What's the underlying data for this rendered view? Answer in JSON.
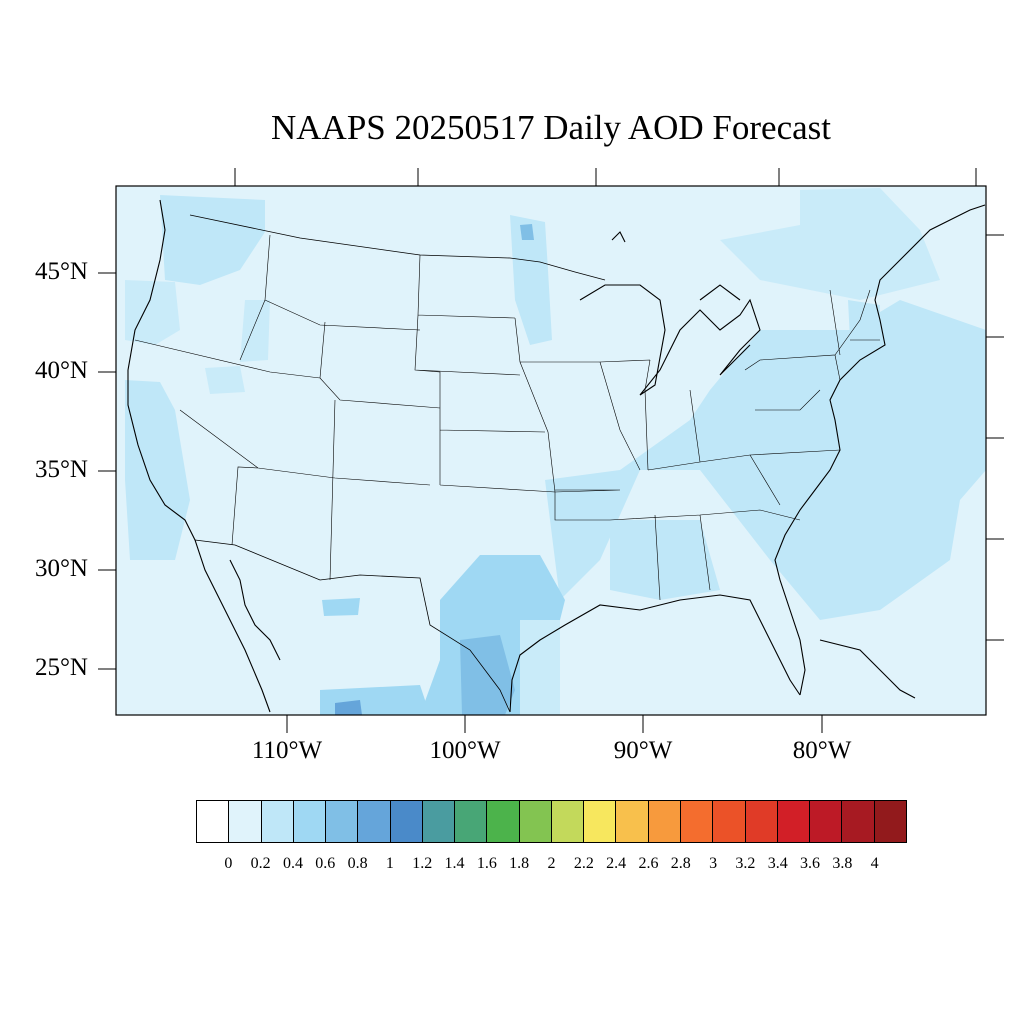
{
  "title": "NAAPS 20250517 Daily AOD Forecast",
  "map": {
    "region": "Contiguous United States",
    "lat_labels": [
      "45°N",
      "40°N",
      "35°N",
      "30°N",
      "25°N"
    ],
    "lon_labels": [
      "110°W",
      "100°W",
      "90°W",
      "80°W"
    ],
    "background_color": "#e0f3fb",
    "outline_color": "#000000"
  },
  "colorbar": {
    "colors": [
      "#ffffff",
      "#e0f3fb",
      "#bfe7f8",
      "#9fd8f3",
      "#80bfe6",
      "#65a5da",
      "#4a8ac9",
      "#4a9ca0",
      "#48a676",
      "#4cb34b",
      "#83c451",
      "#c3d95b",
      "#f7e75e",
      "#f8c04c",
      "#f79a3d",
      "#f46d2e",
      "#eb5228",
      "#e03b27",
      "#d21f27",
      "#bd1a26",
      "#a71a22",
      "#921a1c"
    ],
    "tick_labels": [
      "0",
      "0.2",
      "0.4",
      "0.6",
      "0.8",
      "1",
      "1.2",
      "1.4",
      "1.6",
      "1.8",
      "2",
      "2.2",
      "2.4",
      "2.6",
      "2.8",
      "3",
      "3.2",
      "3.4",
      "3.6",
      "3.8",
      "4"
    ]
  }
}
